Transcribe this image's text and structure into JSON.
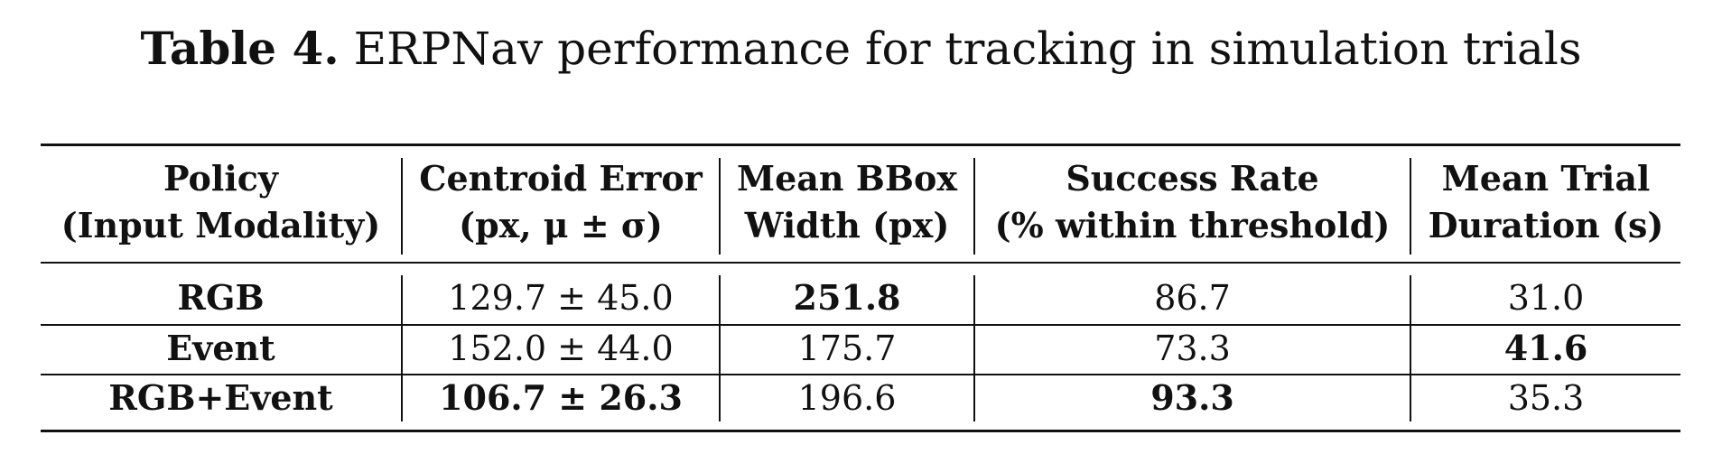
{
  "caption": {
    "label": "Table 4.",
    "text": "ERPNav performance for tracking in simulation trials"
  },
  "table": {
    "headers": [
      {
        "line1": "Policy",
        "line2": "(Input Modality)"
      },
      {
        "line1": "Centroid Error",
        "line2": "(px, μ ± σ)"
      },
      {
        "line1": "Mean BBox",
        "line2": "Width (px)"
      },
      {
        "line1": "Success Rate",
        "line2": "(% within threshold)"
      },
      {
        "line1": "Mean Trial",
        "line2": "Duration (s)"
      }
    ],
    "rows": [
      {
        "policy": "RGB",
        "centroid_error": "129.7 ± 45.0",
        "bbox_width": "251.8",
        "success_rate": "86.7",
        "duration": "31.0",
        "bold": [
          "policy",
          "bbox_width"
        ]
      },
      {
        "policy": "Event",
        "centroid_error": "152.0 ± 44.0",
        "bbox_width": "175.7",
        "success_rate": "73.3",
        "duration": "41.6",
        "bold": [
          "policy",
          "duration"
        ]
      },
      {
        "policy": "RGB+Event",
        "centroid_error": "106.7 ± 26.3",
        "bbox_width": "196.6",
        "success_rate": "93.3",
        "duration": "35.3",
        "bold": [
          "policy",
          "centroid_error",
          "success_rate"
        ]
      }
    ]
  }
}
